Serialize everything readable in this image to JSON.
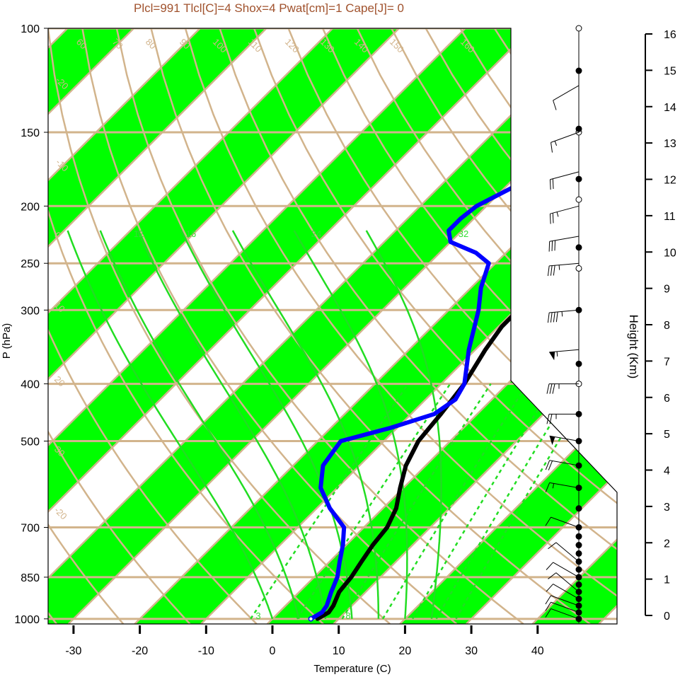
{
  "title": "Plcl=991 Tlcl[C]=4 Shox=4 Pwat[cm]=1 Cape[J]= 0",
  "colors": {
    "stripe": "#00ff00",
    "isopleth": "#d2b48c",
    "title": "#a0522d",
    "temperature": "#000000",
    "dewpoint": "#0000ff",
    "moist_adiabat": "#22dd22",
    "mixing_ratio": "#22dd22"
  },
  "chart_data": {
    "type": "line",
    "title": "Plcl=991 Tlcl[C]=4 Shox=4 Pwat[cm]=1 Cape[J]= 0",
    "xlabel": "Temperature (C)",
    "ylabel": "P (hPa)",
    "y2label": "Height (Km)",
    "xlim": [
      -33,
      43
    ],
    "ylim": [
      1020,
      100
    ],
    "x_ticks": [
      -30,
      -20,
      -10,
      0,
      10,
      20,
      30,
      40
    ],
    "x_tick_labels": [
      "-30",
      "-20",
      "-10",
      "0",
      "10",
      "20",
      "30",
      "40"
    ],
    "y_ticks": [
      100,
      150,
      200,
      250,
      300,
      400,
      500,
      700,
      850,
      1000
    ],
    "y_tick_labels": [
      "100",
      "150",
      "200",
      "250",
      "300",
      "400",
      "500",
      "700",
      "850",
      "1000"
    ],
    "height_ticks": [
      0,
      1,
      2,
      3,
      4,
      5,
      6,
      7,
      8,
      9,
      10,
      11,
      12,
      13,
      14,
      15,
      16
    ],
    "height_tick_labels": [
      "0",
      "1",
      "2",
      "3",
      "4",
      "5",
      "6",
      "7",
      "8",
      "9",
      "10",
      "11",
      "12",
      "13",
      "14",
      "15",
      "16"
    ],
    "isotherm_labels": [
      "-20",
      "-10",
      "0",
      "10",
      "20",
      "30",
      "-20",
      "-10",
      "0",
      "10",
      "20",
      "30",
      "40",
      "50",
      "60",
      "70",
      "80",
      "90",
      "100",
      "110",
      "120",
      "130",
      "140",
      "150",
      "160"
    ],
    "mixing_ratio_labels": [
      "3",
      "8",
      "12",
      "16",
      "24",
      "32"
    ],
    "series": [
      {
        "name": "temperature",
        "color": "#000000",
        "points": [
          [
            1000,
            6.8
          ],
          [
            975,
            7.5
          ],
          [
            950,
            7.2
          ],
          [
            900,
            6.0
          ],
          [
            850,
            5.6
          ],
          [
            800,
            4.8
          ],
          [
            750,
            4.0
          ],
          [
            700,
            3.5
          ],
          [
            650,
            2.0
          ],
          [
            600,
            -0.5
          ],
          [
            550,
            -3.0
          ],
          [
            500,
            -4.8
          ],
          [
            450,
            -5.5
          ],
          [
            400,
            -6.5
          ],
          [
            350,
            -8.5
          ],
          [
            320,
            -9.5
          ],
          [
            300,
            -9.5
          ],
          [
            275,
            -8.5
          ],
          [
            250,
            -6.0
          ],
          [
            225,
            -2.0
          ],
          [
            200,
            2.0
          ],
          [
            175,
            6.0
          ],
          [
            150,
            9.0
          ],
          [
            130,
            12.5
          ],
          [
            115,
            14.0
          ],
          [
            110,
            14.5
          ]
        ]
      },
      {
        "name": "dewpoint",
        "color": "#0000ff",
        "points": [
          [
            1000,
            5.8
          ],
          [
            975,
            6.5
          ],
          [
            950,
            6.2
          ],
          [
            900,
            4.8
          ],
          [
            850,
            3.5
          ],
          [
            800,
            1.5
          ],
          [
            750,
            -0.5
          ],
          [
            700,
            -3.0
          ],
          [
            650,
            -8.0
          ],
          [
            600,
            -12.5
          ],
          [
            550,
            -15.5
          ],
          [
            525,
            -16.0
          ],
          [
            500,
            -16.5
          ],
          [
            475,
            -11.0
          ],
          [
            450,
            -6.5
          ],
          [
            425,
            -5.5
          ],
          [
            400,
            -6.5
          ],
          [
            350,
            -11.0
          ],
          [
            300,
            -15.5
          ],
          [
            275,
            -18.5
          ],
          [
            250,
            -21.0
          ],
          [
            240,
            -24.5
          ],
          [
            230,
            -30.0
          ],
          [
            220,
            -32.0
          ],
          [
            210,
            -32.0
          ],
          [
            200,
            -31.5
          ],
          [
            150,
            -21.0
          ],
          [
            110,
            -15.0
          ]
        ]
      }
    ],
    "wind_barbs": [
      {
        "p": 1000,
        "speed_kt": 10,
        "dir_deg": 250
      },
      {
        "p": 975,
        "speed_kt": 10,
        "dir_deg": 250
      },
      {
        "p": 950,
        "speed_kt": 10,
        "dir_deg": 250
      },
      {
        "p": 925,
        "speed_kt": 10,
        "dir_deg": 240
      },
      {
        "p": 900,
        "speed_kt": 10,
        "dir_deg": 230
      },
      {
        "p": 850,
        "speed_kt": 10,
        "dir_deg": 240
      },
      {
        "p": 800,
        "speed_kt": 10,
        "dir_deg": 230
      },
      {
        "p": 700,
        "speed_kt": 10,
        "dir_deg": 250
      },
      {
        "p": 600,
        "speed_kt": 15,
        "dir_deg": 260
      },
      {
        "p": 550,
        "speed_kt": 20,
        "dir_deg": 260
      },
      {
        "p": 500,
        "speed_kt": 50,
        "dir_deg": 260
      },
      {
        "p": 450,
        "speed_kt": 25,
        "dir_deg": 270
      },
      {
        "p": 400,
        "speed_kt": 35,
        "dir_deg": 270
      },
      {
        "p": 350,
        "speed_kt": 55,
        "dir_deg": 275
      },
      {
        "p": 300,
        "speed_kt": 45,
        "dir_deg": 275
      },
      {
        "p": 250,
        "speed_kt": 35,
        "dir_deg": 275
      },
      {
        "p": 225,
        "speed_kt": 30,
        "dir_deg": 280
      },
      {
        "p": 200,
        "speed_kt": 25,
        "dir_deg": 285
      },
      {
        "p": 175,
        "speed_kt": 20,
        "dir_deg": 285
      },
      {
        "p": 150,
        "speed_kt": 15,
        "dir_deg": 290
      },
      {
        "p": 125,
        "speed_kt": 10,
        "dir_deg": 300
      }
    ],
    "sounding_dots": [
      {
        "p": 1000,
        "filled": true
      },
      {
        "p": 975,
        "filled": true
      },
      {
        "p": 950,
        "filled": true
      },
      {
        "p": 925,
        "filled": true
      },
      {
        "p": 900,
        "filled": true
      },
      {
        "p": 875,
        "filled": true
      },
      {
        "p": 850,
        "filled": true
      },
      {
        "p": 825,
        "filled": true
      },
      {
        "p": 800,
        "filled": true
      },
      {
        "p": 775,
        "filled": true
      },
      {
        "p": 750,
        "filled": true
      },
      {
        "p": 725,
        "filled": true
      },
      {
        "p": 700,
        "filled": true
      },
      {
        "p": 650,
        "filled": true
      },
      {
        "p": 600,
        "filled": true
      },
      {
        "p": 550,
        "filled": true
      },
      {
        "p": 500,
        "filled": true
      },
      {
        "p": 450,
        "filled": true
      },
      {
        "p": 400,
        "filled": false
      },
      {
        "p": 370,
        "filled": true
      },
      {
        "p": 300,
        "filled": true
      },
      {
        "p": 255,
        "filled": false
      },
      {
        "p": 235,
        "filled": true
      },
      {
        "p": 195,
        "filled": false
      },
      {
        "p": 180,
        "filled": true
      },
      {
        "p": 150,
        "filled": false
      },
      {
        "p": 148,
        "filled": true
      },
      {
        "p": 118,
        "filled": true
      },
      {
        "p": 100,
        "filled": false
      }
    ]
  }
}
